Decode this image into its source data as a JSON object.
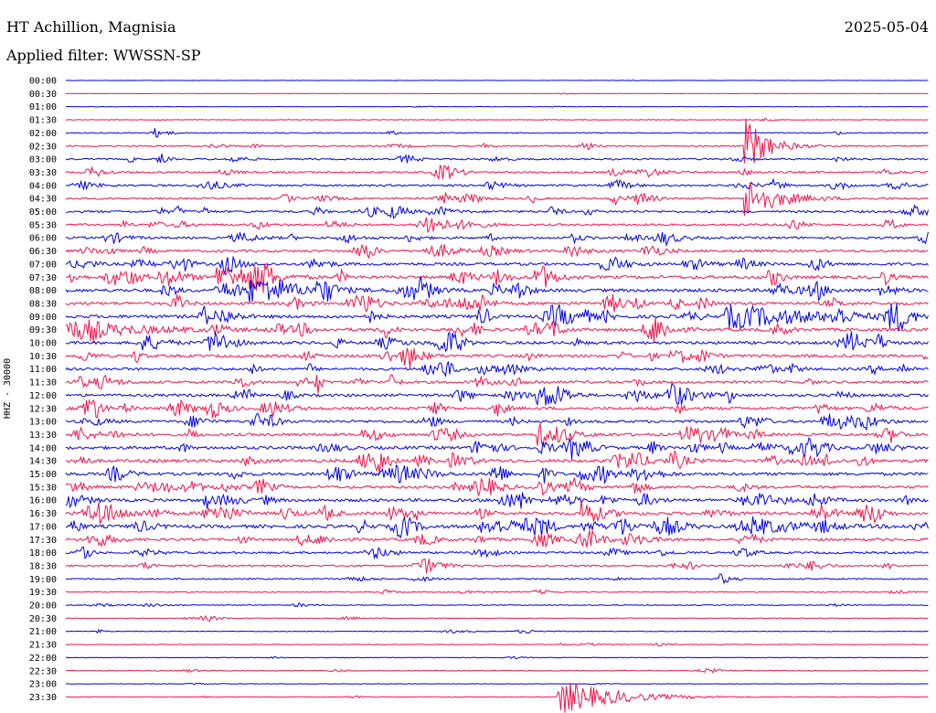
{
  "header": {
    "station": "HT Achillion, Magnisia",
    "date": "2025-05-04",
    "filter": "Applied filter: WWSSN-SP"
  },
  "axis": {
    "channel_label": "HHZ - 30000"
  },
  "colors": {
    "odd_trace": "#0000e0",
    "even_trace": "#f0144a"
  },
  "chart_data": {
    "type": "line",
    "ylabel": "HHZ - 30000",
    "row_labels": [
      "00:00",
      "00:30",
      "01:00",
      "01:30",
      "02:00",
      "02:30",
      "03:00",
      "03:30",
      "04:00",
      "04:30",
      "05:00",
      "05:30",
      "06:00",
      "06:30",
      "07:00",
      "07:30",
      "08:00",
      "08:30",
      "09:00",
      "09:30",
      "10:00",
      "10:30",
      "11:00",
      "11:30",
      "12:00",
      "12:30",
      "13:00",
      "13:30",
      "14:00",
      "14:30",
      "15:00",
      "15:30",
      "16:00",
      "16:30",
      "17:00",
      "17:30",
      "18:00",
      "18:30",
      "19:00",
      "19:30",
      "20:00",
      "20:30",
      "21:00",
      "21:30",
      "22:00",
      "22:30",
      "23:00",
      "23:30"
    ],
    "row_noise_level": [
      0.3,
      0.4,
      0.5,
      0.7,
      1.2,
      1.6,
      1.9,
      2.2,
      2.3,
      2.1,
      2.5,
      2.4,
      2.6,
      2.9,
      3.2,
      3.6,
      3.8,
      3.5,
      3.7,
      3.6,
      3.4,
      3.3,
      3.1,
      3.0,
      3.2,
      3.4,
      3.1,
      3.3,
      3.6,
      3.8,
      3.4,
      3.3,
      3.5,
      3.7,
      3.9,
      3.0,
      2.4,
      2.0,
      1.6,
      1.2,
      1.0,
      0.9,
      0.8,
      0.8,
      0.7,
      0.9,
      0.6,
      0.7
    ],
    "events": [
      {
        "row": 5,
        "pos": 0.79,
        "amp": 30,
        "dur": 0.02
      },
      {
        "row": 9,
        "pos": 0.79,
        "amp": 22,
        "dur": 0.03
      },
      {
        "row": 11,
        "pos": 0.42,
        "amp": 14,
        "dur": 0.015
      },
      {
        "row": 15,
        "pos": 0.18,
        "amp": 14,
        "dur": 0.03
      },
      {
        "row": 16,
        "pos": 0.22,
        "amp": 12,
        "dur": 0.04
      },
      {
        "row": 18,
        "pos": 0.78,
        "amp": 12,
        "dur": 0.08
      },
      {
        "row": 19,
        "pos": 0.01,
        "amp": 10,
        "dur": 0.06
      },
      {
        "row": 24,
        "pos": 0.7,
        "amp": 10,
        "dur": 0.02
      },
      {
        "row": 27,
        "pos": 0.55,
        "amp": 12,
        "dur": 0.02
      },
      {
        "row": 33,
        "pos": 0.04,
        "amp": 14,
        "dur": 0.02
      },
      {
        "row": 33,
        "pos": 0.6,
        "amp": 18,
        "dur": 0.015
      },
      {
        "row": 34,
        "pos": 0.8,
        "amp": 9,
        "dur": 0.04
      },
      {
        "row": 47,
        "pos": 0.58,
        "amp": 18,
        "dur": 0.05
      }
    ]
  }
}
